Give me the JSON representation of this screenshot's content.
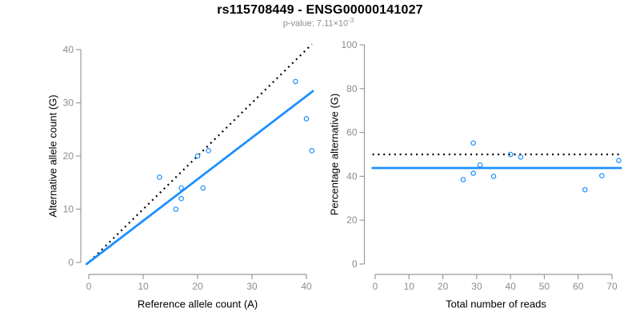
{
  "header": {
    "title": "rs115708449 - ENSG00000141027",
    "subtitle_prefix": "p-value: 7.11×10",
    "subtitle_exponent": "-3"
  },
  "colors": {
    "fit_blue": "#1E90FF",
    "reference_black": "#000000",
    "axis_gray": "#999999",
    "tick_label_gray": "#8c8c8c",
    "title_black": "#000000",
    "subtitle_gray": "#8e8e8e",
    "background": "#ffffff"
  },
  "chart_data": [
    {
      "type": "scatter",
      "panel": "left",
      "xlabel": "Reference allele count (A)",
      "ylabel": "Alternative allele count (G)",
      "xticks": [
        0,
        10,
        20,
        30,
        40
      ],
      "yticks": [
        0,
        10,
        20,
        30,
        40
      ],
      "xlim": [
        0,
        41.5
      ],
      "ylim": [
        0,
        41.5
      ],
      "grid": false,
      "legend": null,
      "points": [
        [
          13,
          16
        ],
        [
          16,
          10
        ],
        [
          17,
          12
        ],
        [
          17,
          14
        ],
        [
          20,
          20
        ],
        [
          21,
          14
        ],
        [
          22,
          21
        ],
        [
          38,
          34
        ],
        [
          40,
          27
        ],
        [
          41,
          21
        ]
      ],
      "lines": [
        {
          "name": "identity-line",
          "style": "dotted",
          "color": "black",
          "x1": 0.2,
          "y1": 0.2,
          "x2": 41.0,
          "y2": 41.0
        },
        {
          "name": "regression-line",
          "style": "solid",
          "color": "blue",
          "x1": -0.4,
          "y1": -0.3,
          "x2": 41.2,
          "y2": 32.2
        }
      ]
    },
    {
      "type": "scatter",
      "panel": "right",
      "xlabel": "Total number of reads",
      "ylabel": "Percentage alternative (G)",
      "xticks": [
        0,
        10,
        20,
        30,
        40,
        50,
        60,
        70
      ],
      "yticks": [
        0,
        20,
        40,
        60,
        80,
        100
      ],
      "xlim": [
        0,
        72.6
      ],
      "ylim": [
        0,
        100
      ],
      "grid": false,
      "legend": null,
      "points": [
        [
          26,
          38.5
        ],
        [
          29,
          41.4
        ],
        [
          29,
          55.2
        ],
        [
          31,
          45.2
        ],
        [
          35,
          40.0
        ],
        [
          40,
          50.0
        ],
        [
          43,
          48.8
        ],
        [
          62,
          33.9
        ],
        [
          67,
          40.3
        ],
        [
          72,
          47.2
        ]
      ],
      "lines": [
        {
          "name": "expected-50pct-line",
          "style": "dotted",
          "color": "black",
          "x1": -0.8,
          "y1": 50,
          "x2": 72.6,
          "y2": 50
        },
        {
          "name": "mean-percentage-line",
          "style": "solid",
          "color": "blue",
          "x1": -0.8,
          "y1": 43.8,
          "x2": 72.6,
          "y2": 43.8
        }
      ]
    }
  ]
}
